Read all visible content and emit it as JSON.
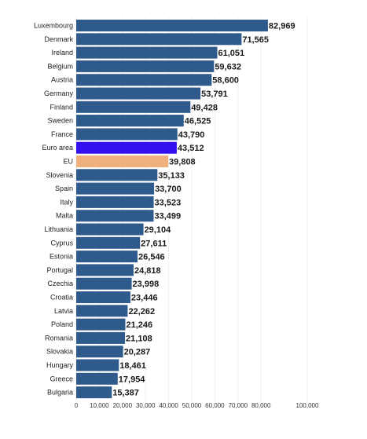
{
  "chart_data": {
    "type": "bar",
    "orientation": "horizontal",
    "categories": [
      "Luxembourg",
      "Denmark",
      "Ireland",
      "Belgium",
      "Austria",
      "Germany",
      "Finland",
      "Sweden",
      "France",
      "Euro area",
      "EU",
      "Slovenia",
      "Spain",
      "Italy",
      "Malta",
      "Lithuania",
      "Cyprus",
      "Estonia",
      "Portugal",
      "Czechia",
      "Croatia",
      "Latvia",
      "Poland",
      "Romania",
      "Slovakia",
      "Hungary",
      "Greece",
      "Bulgaria"
    ],
    "values": [
      82969,
      71565,
      61051,
      59632,
      58600,
      53791,
      49428,
      46525,
      43790,
      43512,
      39808,
      35133,
      33700,
      33523,
      33499,
      29104,
      27611,
      26546,
      24818,
      23998,
      23446,
      22262,
      21246,
      21108,
      20287,
      18461,
      17954,
      15387
    ],
    "value_labels": [
      "82,969",
      "71,565",
      "61,051",
      "59,632",
      "58,600",
      "53,791",
      "49,428",
      "46,525",
      "43,790",
      "43,512",
      "39,808",
      "35,133",
      "33,700",
      "33,523",
      "33,499",
      "29,104",
      "27,611",
      "26,546",
      "24,818",
      "23,998",
      "23,446",
      "22,262",
      "21,246",
      "21,108",
      "20,287",
      "18,461",
      "17,954",
      "15,387"
    ],
    "xlim": [
      0,
      100000
    ],
    "x_ticks": [
      0,
      10000,
      20000,
      30000,
      40000,
      50000,
      60000,
      70000,
      80000,
      100000
    ],
    "x_tick_labels": [
      "0",
      "10,000",
      "20,000",
      "30,000",
      "40,000",
      "50,000",
      "60,000",
      "70,000",
      "80,000",
      "100,000"
    ],
    "grid": true,
    "colors": {
      "default": "#2f5b8c",
      "highlight": {
        "Euro area": "#3311ee",
        "EU": "#eeb07c"
      }
    }
  }
}
